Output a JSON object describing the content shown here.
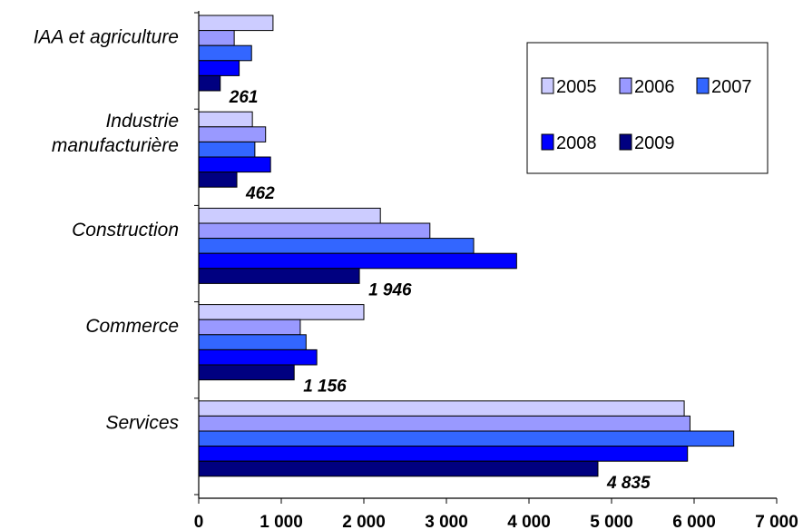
{
  "chart_data": {
    "type": "bar",
    "orientation": "horizontal",
    "title": "",
    "xlabel": "",
    "ylabel": "",
    "xlim": [
      0,
      7000
    ],
    "x_ticks": [
      0,
      1000,
      2000,
      3000,
      4000,
      5000,
      6000,
      7000
    ],
    "x_tick_labels": [
      "0",
      "1 000",
      "2 000",
      "3 000",
      "4 000",
      "5 000",
      "6 000",
      "7 000"
    ],
    "grid": false,
    "legend_position": "top-right",
    "categories": [
      [
        "IAA et agriculture"
      ],
      [
        "Industrie",
        "manufacturière"
      ],
      [
        "Construction"
      ],
      [
        "Commerce"
      ],
      [
        "Services"
      ]
    ],
    "series": [
      {
        "name": "2005",
        "color": "#ccccff",
        "values": [
          900,
          650,
          2200,
          2000,
          5880
        ]
      },
      {
        "name": "2006",
        "color": "#9999ff",
        "values": [
          430,
          810,
          2800,
          1230,
          5950
        ]
      },
      {
        "name": "2007",
        "color": "#3366ff",
        "values": [
          640,
          680,
          3330,
          1300,
          6480
        ]
      },
      {
        "name": "2008",
        "color": "#0000ff",
        "values": [
          490,
          870,
          3850,
          1430,
          5920
        ]
      },
      {
        "name": "2009",
        "color": "#000080",
        "values": [
          261,
          462,
          1946,
          1156,
          4835
        ]
      }
    ],
    "data_labels": {
      "series": "2009",
      "labels": [
        "261",
        "462",
        "1 946",
        "1 156",
        "4 835"
      ]
    }
  }
}
